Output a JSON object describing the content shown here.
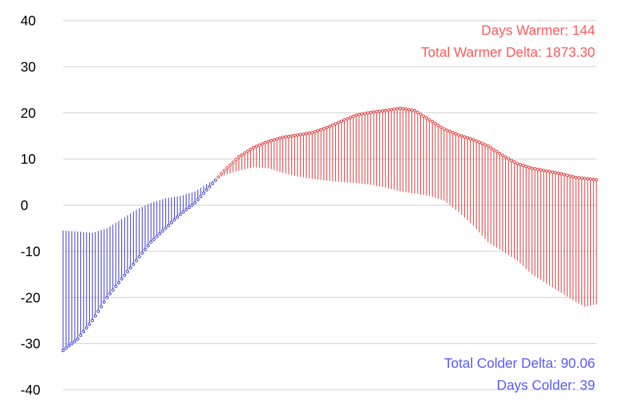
{
  "chart_data": {
    "type": "line",
    "title": "",
    "xlabel": "",
    "ylabel": "",
    "ylim": [
      -40,
      40
    ],
    "y_ticks": [
      "40",
      "30",
      "20",
      "10",
      "0",
      "-10",
      "-20",
      "-30",
      "-40"
    ],
    "grid": true,
    "colors": {
      "warmer": "#ff5a5a",
      "colder": "#5a5aff",
      "warmer_line": "#dd2222",
      "colder_line": "#2222cc",
      "grid": "#cccccc"
    },
    "x_count": 183,
    "series": [
      {
        "keyframes": [
          [
            0,
            -31.5
          ],
          [
            5,
            -29
          ],
          [
            10,
            -25
          ],
          [
            15,
            -20
          ],
          [
            20,
            -16
          ],
          [
            25,
            -12
          ],
          [
            30,
            -8
          ],
          [
            35,
            -5
          ],
          [
            40,
            -2
          ],
          [
            45,
            0.5
          ],
          [
            50,
            4
          ],
          [
            55,
            7.5
          ],
          [
            60,
            10.5
          ],
          [
            65,
            12.5
          ],
          [
            70,
            13.8
          ],
          [
            75,
            14.7
          ],
          [
            80,
            15.2
          ],
          [
            85,
            15.7
          ],
          [
            90,
            16.8
          ],
          [
            95,
            18.2
          ],
          [
            100,
            19.5
          ],
          [
            105,
            20.1
          ],
          [
            110,
            20.5
          ],
          [
            115,
            21
          ],
          [
            120,
            20.5
          ],
          [
            125,
            18.5
          ],
          [
            130,
            16.5
          ],
          [
            135,
            15.2
          ],
          [
            140,
            14.2
          ],
          [
            145,
            12.8
          ],
          [
            150,
            10.8
          ],
          [
            155,
            9
          ],
          [
            160,
            8
          ],
          [
            165,
            7.4
          ],
          [
            170,
            6.8
          ],
          [
            175,
            6
          ],
          [
            178,
            5.8
          ],
          [
            182,
            5.5
          ]
        ]
      },
      {
        "keyframes": [
          [
            0,
            -5.5
          ],
          [
            5,
            -5.7
          ],
          [
            10,
            -6
          ],
          [
            15,
            -5
          ],
          [
            20,
            -3
          ],
          [
            25,
            -1
          ],
          [
            30,
            0.5
          ],
          [
            35,
            1.5
          ],
          [
            40,
            2
          ],
          [
            45,
            3
          ],
          [
            50,
            5
          ],
          [
            55,
            6.5
          ],
          [
            60,
            7.5
          ],
          [
            65,
            8.2
          ],
          [
            70,
            8
          ],
          [
            75,
            7
          ],
          [
            80,
            6.2
          ],
          [
            85,
            5.7
          ],
          [
            90,
            5.3
          ],
          [
            95,
            5
          ],
          [
            100,
            4.8
          ],
          [
            105,
            4.4
          ],
          [
            110,
            3.8
          ],
          [
            115,
            3
          ],
          [
            120,
            2.5
          ],
          [
            125,
            2
          ],
          [
            130,
            1
          ],
          [
            135,
            -1.5
          ],
          [
            140,
            -4.5
          ],
          [
            145,
            -8
          ],
          [
            150,
            -10
          ],
          [
            155,
            -12
          ],
          [
            160,
            -15
          ],
          [
            165,
            -17
          ],
          [
            170,
            -19
          ],
          [
            175,
            -21
          ],
          [
            178,
            -22
          ],
          [
            182,
            -21.5
          ]
        ]
      }
    ],
    "annotations": {
      "days_warmer": "Days Warmer: 144",
      "total_warmer_delta": "Total Warmer Delta: 1873.30",
      "total_colder_delta": "Total Colder Delta: 90.06",
      "days_colder": "Days Colder: 39"
    }
  }
}
